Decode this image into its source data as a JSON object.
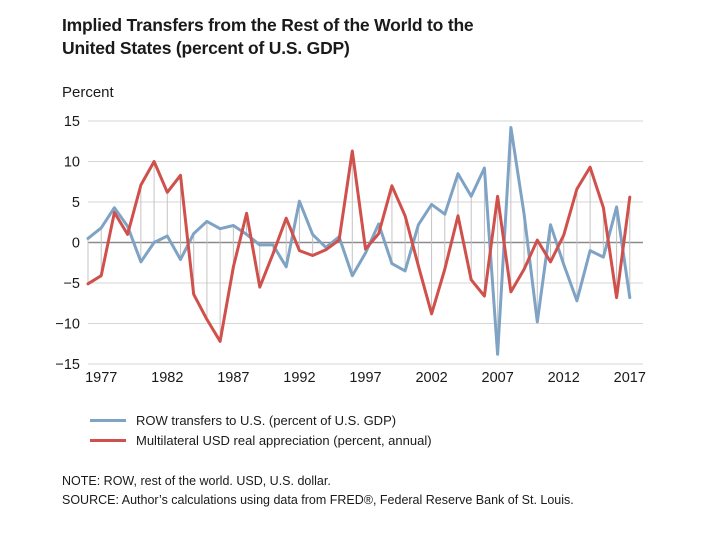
{
  "header": {
    "title_line1": "Implied Transfers from the Rest of the World to the",
    "title_line2": "United States (percent of U.S. GDP)"
  },
  "chart_data": {
    "type": "line",
    "title": "Implied Transfers from the Rest of the World to the United States (percent of U.S. GDP)",
    "ylabel": "Percent",
    "xlabel": "",
    "ylim": [
      -15,
      15
    ],
    "yticks": [
      15,
      10,
      5,
      0,
      -5,
      -10,
      -15
    ],
    "xtick_labels": [
      "1977",
      "1982",
      "1987",
      "1992",
      "1997",
      "2002",
      "2007",
      "2012",
      "2017"
    ],
    "xlim": [
      1976,
      2018
    ],
    "x": [
      1976,
      1977,
      1978,
      1979,
      1980,
      1981,
      1982,
      1983,
      1984,
      1985,
      1986,
      1987,
      1988,
      1989,
      1990,
      1991,
      1992,
      1993,
      1994,
      1995,
      1996,
      1997,
      1998,
      1999,
      2000,
      2001,
      2002,
      2003,
      2004,
      2005,
      2006,
      2007,
      2008,
      2009,
      2010,
      2011,
      2012,
      2013,
      2014,
      2015,
      2016,
      2017
    ],
    "series": [
      {
        "name": "ROW transfers to U.S. (percent of U.S. GDP)",
        "color": "#7fa3c5",
        "values": [
          0.5,
          1.8,
          4.3,
          2.0,
          -2.4,
          0.0,
          0.8,
          -2.1,
          1.1,
          2.6,
          1.7,
          2.1,
          1.0,
          -0.3,
          -0.3,
          -3.0,
          5.1,
          1.0,
          -0.6,
          0.7,
          -4.1,
          -1.3,
          2.3,
          -2.6,
          -3.5,
          2.2,
          4.7,
          3.5,
          8.5,
          5.7,
          9.2,
          -13.8,
          14.2,
          3.5,
          -9.8,
          2.2,
          -2.7,
          -7.2,
          -1.0,
          -1.8,
          4.4,
          -6.8
        ]
      },
      {
        "name": "Multilateral USD real appreciation (percent, annual)",
        "color": "#d0504b",
        "values": [
          -5.1,
          -4.1,
          3.7,
          1.0,
          7.1,
          10.0,
          6.2,
          8.3,
          -6.4,
          -9.5,
          -12.2,
          -3.0,
          3.6,
          -5.5,
          -1.4,
          3.0,
          -1.0,
          -1.6,
          -0.9,
          0.3,
          11.3,
          -0.8,
          1.1,
          7.0,
          3.3,
          -2.9,
          -8.8,
          -3.3,
          3.3,
          -4.6,
          -6.6,
          5.7,
          -6.1,
          -3.3,
          0.3,
          -2.4,
          0.9,
          6.6,
          9.3,
          4.3,
          -6.8,
          5.6
        ]
      }
    ],
    "legend_position": "bottom-left"
  },
  "notes": {
    "line1": "NOTE: ROW, rest of the world. USD, U.S. dollar.",
    "line2": "SOURCE: Author’s calculations using data from FRED®, Federal Reserve Bank of St. Louis."
  }
}
